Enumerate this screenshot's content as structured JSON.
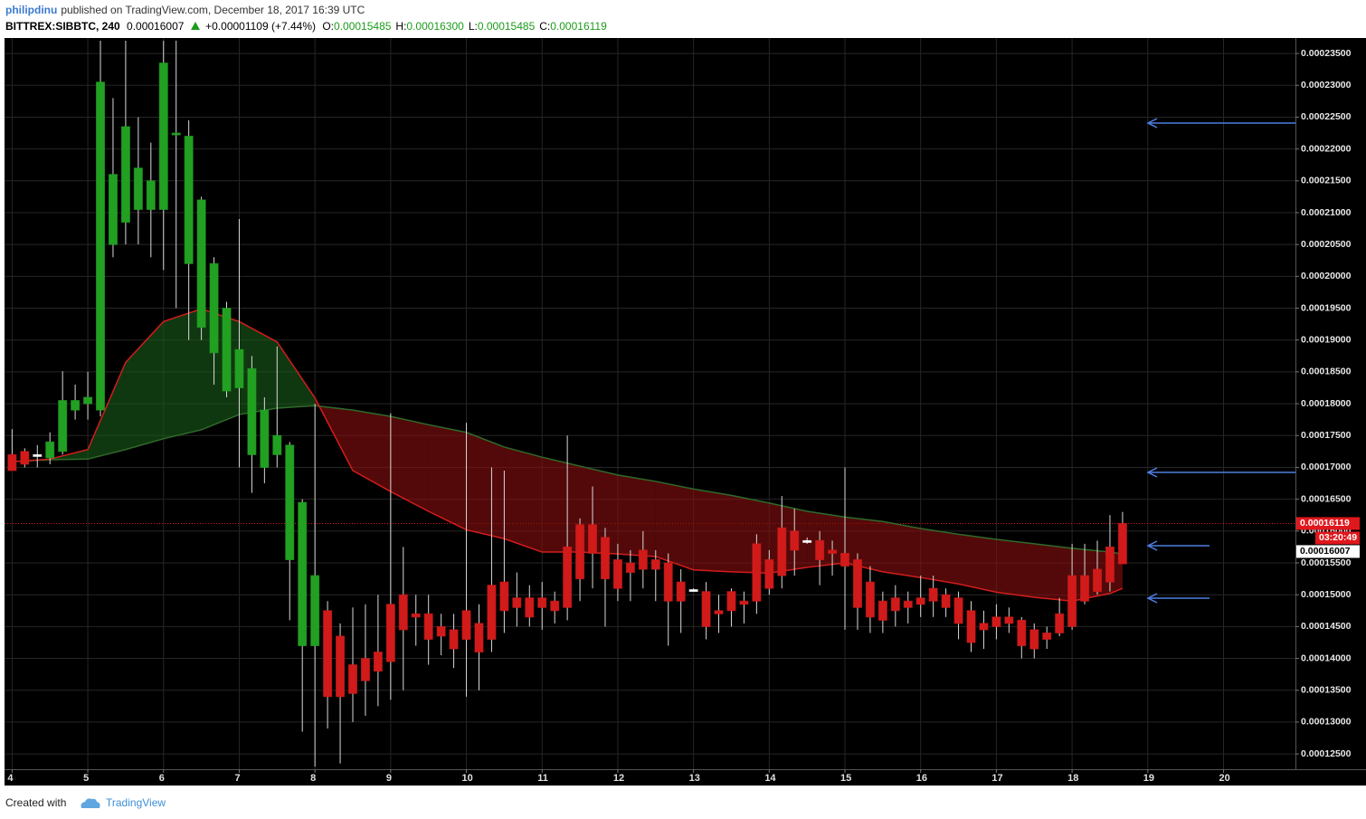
{
  "header": {
    "author": "philipdinu",
    "published": "published on TradingView.com, December 18, 2017 16:39 UTC"
  },
  "chart_data": {
    "type": "candlestick",
    "symbol": "BITTREX:SIBBTC, 240",
    "last": "0.00016007",
    "change": "+0.00001109 (+7.44%)",
    "ohlc_labels": [
      {
        "label": "O:",
        "value": "0.00015485"
      },
      {
        "label": "H:",
        "value": "0.00016300"
      },
      {
        "label": "L:",
        "value": "0.00015485"
      },
      {
        "label": "C:",
        "value": "0.00016119"
      }
    ],
    "x": [
      4,
      4.1667,
      4.3333,
      4.5,
      4.6667,
      4.8333,
      5,
      5.1667,
      5.3333,
      5.5,
      5.6667,
      5.8333,
      6,
      6.1667,
      6.3333,
      6.5,
      6.6667,
      6.8333,
      7,
      7.1667,
      7.3333,
      7.5,
      7.6667,
      7.8333,
      8,
      8.1667,
      8.3333,
      8.5,
      8.6667,
      8.8333,
      9,
      9.1667,
      9.3333,
      9.5,
      9.6667,
      9.8333,
      10,
      10.1667,
      10.3333,
      10.5,
      10.6667,
      10.8333,
      11,
      11.1667,
      11.3333,
      11.5,
      11.6667,
      11.8333,
      12,
      12.1667,
      12.3333,
      12.5,
      12.6667,
      12.8333,
      13,
      13.1667,
      13.3333,
      13.5,
      13.6667,
      13.8333,
      14,
      14.1667,
      14.3333,
      14.5,
      14.6667,
      14.8333,
      15,
      15.1667,
      15.3333,
      15.5,
      15.6667,
      15.8333,
      16,
      16.1667,
      16.3333,
      16.5,
      16.6667,
      16.8333,
      17,
      17.1667,
      17.3333,
      17.5,
      17.6667,
      17.8333,
      18,
      18.1667,
      18.3333,
      18.5,
      18.6667
    ],
    "open": [
      0.000172,
      0.0001705,
      0.0001719,
      0.0001715,
      0.0001725,
      0.000179,
      0.00018,
      0.000179,
      0.000205,
      0.0002085,
      0.0002105,
      0.0002105,
      0.0002105,
      0.0002225,
      0.000222,
      0.000212,
      0.000202,
      0.000195,
      0.0001885,
      0.0001855,
      0.000179,
      0.000175,
      0.0001735,
      0.0001645,
      0.000153,
      0.0001475,
      0.0001435,
      0.000139,
      0.00014,
      0.000141,
      0.0001485,
      0.00015,
      0.000147,
      0.000147,
      0.000145,
      0.0001445,
      0.0001475,
      0.0001455,
      0.0001515,
      0.000152,
      0.0001495,
      0.0001495,
      0.0001495,
      0.000149,
      0.0001575,
      0.000161,
      0.000161,
      0.000159,
      0.0001555,
      0.000155,
      0.000157,
      0.0001555,
      0.000155,
      0.000152,
      0.0001507,
      0.0001505,
      0.0001475,
      0.0001505,
      0.000149,
      0.000158,
      0.0001555,
      0.0001605,
      0.00016,
      0.0001584,
      0.0001585,
      0.000157,
      0.0001565,
      0.0001555,
      0.000152,
      0.000149,
      0.0001495,
      0.000149,
      0.0001495,
      0.000151,
      0.00015,
      0.0001495,
      0.0001475,
      0.0001455,
      0.0001465,
      0.0001465,
      0.000146,
      0.0001445,
      0.000144,
      0.000147,
      0.000153,
      0.000153,
      0.000154,
      0.0001575,
      0.00015485
    ],
    "high": [
      0.000176,
      0.000173,
      0.0001735,
      0.0001755,
      0.0001851,
      0.000183,
      0.000185,
      0.000237,
      0.000228,
      0.000237,
      0.000225,
      0.000221,
      0.000237,
      0.000237,
      0.0002245,
      0.0002125,
      0.000203,
      0.000196,
      0.000209,
      0.0001875,
      0.000181,
      0.000189,
      0.000174,
      0.000165,
      0.00018,
      0.000149,
      0.0001455,
      0.000148,
      0.0001485,
      0.00015,
      0.0001785,
      0.0001575,
      0.00015,
      0.00015,
      0.000147,
      0.000147,
      0.000177,
      0.0001485,
      0.00017,
      0.0001695,
      0.0001535,
      0.0001515,
      0.000152,
      0.0001505,
      0.000175,
      0.000162,
      0.000167,
      0.0001605,
      0.000158,
      0.000157,
      0.00016,
      0.000157,
      0.0001565,
      0.000154,
      0.000151,
      0.000152,
      0.00015,
      0.000151,
      0.0001505,
      0.0001595,
      0.000157,
      0.0001655,
      0.0001635,
      0.000159,
      0.00016,
      0.0001585,
      0.00017,
      0.0001565,
      0.0001545,
      0.0001505,
      0.0001515,
      0.0001505,
      0.000153,
      0.000153,
      0.000151,
      0.0001505,
      0.000149,
      0.0001475,
      0.0001485,
      0.000148,
      0.0001465,
      0.0001455,
      0.000145,
      0.0001495,
      0.000158,
      0.000158,
      0.0001585,
      0.0001625,
      0.000163
    ],
    "low": [
      0.0001695,
      0.00017,
      0.00017,
      0.0001705,
      0.000172,
      0.0001775,
      0.0001775,
      0.000178,
      0.000203,
      0.000205,
      0.000205,
      0.000203,
      0.000201,
      0.000195,
      0.00019,
      0.00019,
      0.000183,
      0.000181,
      0.00017,
      0.000166,
      0.0001675,
      0.00017,
      0.000146,
      0.0001285,
      0.000123,
      0.000129,
      0.0001235,
      0.00013,
      0.000131,
      0.0001325,
      0.0001335,
      0.000135,
      0.000142,
      0.000139,
      0.0001405,
      0.0001385,
      0.000134,
      0.000135,
      0.000141,
      0.000144,
      0.000145,
      0.000145,
      0.0001445,
      0.0001455,
      0.000146,
      0.000149,
      0.000151,
      0.000145,
      0.000149,
      0.000149,
      0.000151,
      0.000149,
      0.000142,
      0.000144,
      0.0001505,
      0.000143,
      0.000144,
      0.000145,
      0.0001455,
      0.000147,
      0.00015,
      0.000151,
      0.000153,
      0.000158,
      0.0001515,
      0.000153,
      0.0001445,
      0.0001445,
      0.000144,
      0.000144,
      0.000145,
      0.0001455,
      0.0001465,
      0.0001465,
      0.0001465,
      0.000143,
      0.000141,
      0.0001415,
      0.000143,
      0.000144,
      0.00014,
      0.00014,
      0.0001415,
      0.0001435,
      0.0001445,
      0.0001485,
      0.00015,
      0.0001505,
      0.00015485
    ],
    "close": [
      0.0001695,
      0.0001725,
      0.000172,
      0.000174,
      0.0001805,
      0.0001805,
      0.000181,
      0.0002305,
      0.000216,
      0.0002235,
      0.000217,
      0.000215,
      0.0002335,
      0.0002223,
      0.000202,
      0.000192,
      0.000188,
      0.000182,
      0.0001825,
      0.000172,
      0.00017,
      0.000172,
      0.0001555,
      0.000142,
      0.000142,
      0.000134,
      0.000134,
      0.0001345,
      0.0001365,
      0.000138,
      0.0001395,
      0.0001445,
      0.0001465,
      0.000143,
      0.0001435,
      0.0001415,
      0.000143,
      0.000141,
      0.000143,
      0.0001475,
      0.000148,
      0.0001465,
      0.000148,
      0.0001475,
      0.000148,
      0.0001525,
      0.0001565,
      0.0001525,
      0.000151,
      0.0001535,
      0.000154,
      0.000154,
      0.000149,
      0.000149,
      0.0001508,
      0.000145,
      0.000147,
      0.0001475,
      0.0001485,
      0.000149,
      0.000151,
      0.000153,
      0.000157,
      0.0001585,
      0.0001555,
      0.0001565,
      0.0001545,
      0.000148,
      0.0001465,
      0.000146,
      0.0001475,
      0.000148,
      0.0001485,
      0.000149,
      0.000148,
      0.0001455,
      0.0001425,
      0.0001445,
      0.000145,
      0.0001455,
      0.000142,
      0.0001415,
      0.000143,
      0.000144,
      0.000145,
      0.000149,
      0.0001505,
      0.000152,
      0.00016119
    ],
    "colors": [
      "#d11a1a",
      "#d11a1a",
      "#ffffff",
      "#22a022",
      "#22a022",
      "#22a022",
      "#22a022",
      "#22a022",
      "#22a022",
      "#22a022",
      "#22a022",
      "#22a022",
      "#22a022",
      "#22a022",
      "#22a022",
      "#22a022",
      "#22a022",
      "#22a022",
      "#22a022",
      "#22a022",
      "#22a022",
      "#22a022",
      "#22a022",
      "#22a022",
      "#22a022",
      "#d11a1a",
      "#d11a1a",
      "#d11a1a",
      "#d11a1a",
      "#d11a1a",
      "#d11a1a",
      "#d11a1a",
      "#d11a1a",
      "#d11a1a",
      "#d11a1a",
      "#d11a1a",
      "#d11a1a",
      "#d11a1a",
      "#d11a1a",
      "#d11a1a",
      "#d11a1a",
      "#d11a1a",
      "#d11a1a",
      "#d11a1a",
      "#d11a1a",
      "#d11a1a",
      "#d11a1a",
      "#d11a1a",
      "#d11a1a",
      "#d11a1a",
      "#d11a1a",
      "#d11a1a",
      "#d11a1a",
      "#d11a1a",
      "#ffffff",
      "#d11a1a",
      "#d11a1a",
      "#d11a1a",
      "#d11a1a",
      "#d11a1a",
      "#d11a1a",
      "#d11a1a",
      "#d11a1a",
      "#ffffff",
      "#d11a1a",
      "#d11a1a",
      "#d11a1a",
      "#d11a1a",
      "#d11a1a",
      "#d11a1a",
      "#d11a1a",
      "#d11a1a",
      "#d11a1a",
      "#d11a1a",
      "#d11a1a",
      "#d11a1a",
      "#d11a1a",
      "#d11a1a",
      "#d11a1a",
      "#d11a1a",
      "#d11a1a",
      "#d11a1a",
      "#d11a1a",
      "#d11a1a",
      "#d11a1a",
      "#d11a1a",
      "#d11a1a",
      "#d11a1a",
      "#d11a1a"
    ],
    "wick_color": "#d8d8d8",
    "cloud": {
      "x": [
        4,
        4.5,
        5,
        5.5,
        6,
        6.5,
        7,
        7.5,
        8,
        8.5,
        9,
        9.5,
        10,
        10.5,
        11,
        11.5,
        12,
        12.5,
        13,
        13.5,
        14,
        14.5,
        15,
        15.5,
        16,
        16.5,
        17,
        17.5,
        18,
        18.5,
        18.6667
      ],
      "fast": {
        "color": "#d41c1c",
        "values": [
          0.0001709,
          0.0001713,
          0.0001728,
          0.0001865,
          0.0001929,
          0.0001949,
          0.0001929,
          0.0001897,
          0.0001809,
          0.0001695,
          0.0001662,
          0.0001631,
          0.0001602,
          0.0001588,
          0.0001567,
          0.0001567,
          0.0001564,
          0.000156,
          0.0001539,
          0.0001536,
          0.0001534,
          0.0001543,
          0.000155,
          0.0001536,
          0.0001527,
          0.0001517,
          0.0001504,
          0.0001496,
          0.000149,
          0.0001502,
          0.000151
        ]
      },
      "slow": {
        "color": "#2f6a2a",
        "values": [
          0.0001709,
          0.0001712,
          0.0001713,
          0.0001728,
          0.0001745,
          0.0001759,
          0.0001783,
          0.0001793,
          0.0001797,
          0.000179,
          0.000178,
          0.0001767,
          0.0001755,
          0.0001732,
          0.0001716,
          0.0001702,
          0.0001688,
          0.0001678,
          0.0001666,
          0.0001656,
          0.0001644,
          0.0001631,
          0.0001622,
          0.0001615,
          0.0001604,
          0.0001595,
          0.0001587,
          0.000158,
          0.0001573,
          0.0001567,
          0.0001564
        ]
      },
      "fill_above": "#1b5e1b",
      "fill_below": "#8b0f0f"
    },
    "price_tags": [
      {
        "value": 0.00016119,
        "color": "#e0171c",
        "text_color": "#ffffff"
      },
      {
        "value": 0.00016007,
        "color": "#ffffff",
        "text_color": "#000000"
      }
    ],
    "countdown": "03:20:49",
    "xlim": [
      3.9,
      20.95
    ],
    "xticks": [
      4,
      5,
      6,
      7,
      8,
      9,
      10,
      11,
      12,
      13,
      14,
      15,
      16,
      17,
      18,
      19,
      20
    ],
    "ylim": [
      0.0001226,
      0.000237
    ],
    "yticks": [
      {
        "value": 0.000125,
        "label": "0.00012500"
      },
      {
        "value": 0.00013,
        "label": "0.00013000"
      },
      {
        "value": 0.000135,
        "label": "0.00013500"
      },
      {
        "value": 0.00014,
        "label": "0.00014000"
      },
      {
        "value": 0.000145,
        "label": "0.00014500"
      },
      {
        "value": 0.00015,
        "label": "0.00015000"
      },
      {
        "value": 0.000155,
        "label": "0.00015500"
      },
      {
        "value": 0.00016,
        "label": "0.00016000"
      },
      {
        "value": 0.000165,
        "label": "0.00016500"
      },
      {
        "value": 0.00017,
        "label": "0.00017000"
      },
      {
        "value": 0.000175,
        "label": "0.00017500"
      },
      {
        "value": 0.00018,
        "label": "0.00018000"
      },
      {
        "value": 0.000185,
        "label": "0.00018500"
      },
      {
        "value": 0.00019,
        "label": "0.00019000"
      },
      {
        "value": 0.000195,
        "label": "0.00019500"
      },
      {
        "value": 0.0002,
        "label": "0.00020000"
      },
      {
        "value": 0.000205,
        "label": "0.00020500"
      },
      {
        "value": 0.00021,
        "label": "0.00021000"
      },
      {
        "value": 0.000215,
        "label": "0.00021500"
      },
      {
        "value": 0.00022,
        "label": "0.00022000"
      },
      {
        "value": 0.000225,
        "label": "0.00022500"
      },
      {
        "value": 0.00023,
        "label": "0.00023000"
      },
      {
        "value": 0.000235,
        "label": "0.00023500"
      }
    ],
    "grid": true
  },
  "footer": {
    "created": "Created with",
    "brand": "TradingView"
  }
}
